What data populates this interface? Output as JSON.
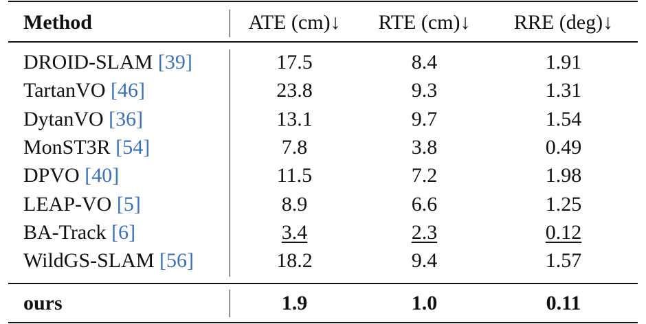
{
  "header": {
    "method": "Method",
    "ate": "ATE (cm)↓",
    "rte": "RTE (cm)↓",
    "rre": "RRE (deg)↓"
  },
  "rows": [
    {
      "name": "DROID-SLAM",
      "cite": "39",
      "ate": "17.5",
      "rte": "8.4",
      "rre": "1.91"
    },
    {
      "name": "TartanVO",
      "cite": "46",
      "ate": "23.8",
      "rte": "9.3",
      "rre": "1.31"
    },
    {
      "name": "DytanVO",
      "cite": "36",
      "ate": "13.1",
      "rte": "9.7",
      "rre": "1.54"
    },
    {
      "name": "MonST3R",
      "cite": "54",
      "ate": "7.8",
      "rte": "3.8",
      "rre": "0.49"
    },
    {
      "name": "DPVO",
      "cite": "40",
      "ate": "11.5",
      "rte": "7.2",
      "rre": "1.98"
    },
    {
      "name": "LEAP-VO",
      "cite": "5",
      "ate": "8.9",
      "rte": "6.6",
      "rre": "1.25"
    },
    {
      "name": "BA-Track",
      "cite": "6",
      "ate": "3.4",
      "rte": "2.3",
      "rre": "0.12"
    },
    {
      "name": "WildGS-SLAM",
      "cite": "56",
      "ate": "18.2",
      "rte": "9.4",
      "rre": "1.57"
    }
  ],
  "footer": {
    "name": "ours",
    "ate": "1.9",
    "rte": "1.0",
    "rre": "0.11"
  }
}
